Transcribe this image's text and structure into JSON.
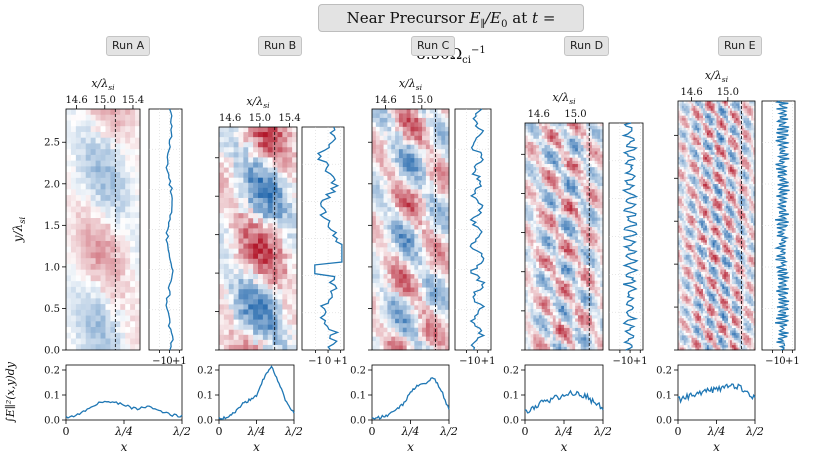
{
  "figure": {
    "title_text": "Near Precursor E∥/E0 at t = 8.50Ωci⁻¹",
    "title_parts": {
      "main": "Near Precursor ",
      "quantity": "E",
      "par": "∥",
      "slash": "/E",
      "zero": "0",
      "at": " at ",
      "t": "t",
      "eq": " = 8.50Ω",
      "ci": "ci",
      "exp": "−1"
    },
    "colors": {
      "line": "#1f77b4",
      "positive": "#b2182b",
      "negative": "#2166ac",
      "frame": "#000000",
      "dashed": "#000000"
    }
  },
  "chart_data": [
    {
      "type": "heatmap",
      "panel": "Run A",
      "label": "Run A",
      "top_xlabel": "x/λsi",
      "top_ticks": [
        "14.6",
        "15.0",
        "15.4"
      ],
      "top_tick_values": [
        14.6,
        15.0,
        15.4
      ],
      "top_xlim": [
        14.45,
        15.5
      ],
      "ylabel": "y/λsi",
      "yticks": [
        "0.0",
        "0.5",
        "1.0",
        "1.5",
        "2.0",
        "2.5"
      ],
      "ylim": [
        0,
        2.9
      ],
      "dashed_x": 15.15,
      "wave_density": 1,
      "amplitude": 0.45,
      "profile_ticks": [
        "−1",
        "0",
        "+1"
      ],
      "bottom": {
        "type": "line",
        "x_ticks": [
          "0",
          "λ/4",
          "λ/2"
        ],
        "xlabel": "x",
        "ylabel": "∫E∥²(x,y)dy",
        "yticks": [
          "0.0",
          "0.1",
          "0.2"
        ],
        "ylim": [
          0,
          0.22
        ],
        "x": [
          0,
          0.1,
          0.2,
          0.3,
          0.4,
          0.5,
          0.6,
          0.7,
          0.8,
          0.9,
          1.0
        ],
        "values": [
          0.01,
          0.02,
          0.045,
          0.07,
          0.075,
          0.06,
          0.045,
          0.055,
          0.04,
          0.02,
          0.015
        ]
      }
    },
    {
      "type": "heatmap",
      "panel": "Run B",
      "label": "Run B",
      "top_xlabel": "x/λsi",
      "top_ticks": [
        "14.6",
        "15.0",
        "15.4"
      ],
      "top_tick_values": [
        14.6,
        15.0,
        15.4
      ],
      "top_xlim": [
        14.45,
        15.5
      ],
      "yticks": [
        "0.0",
        "0.5",
        "1.0",
        "1.5",
        "2.0",
        "2.5"
      ],
      "ylim": [
        0,
        2.9
      ],
      "dashed_x": 15.2,
      "wave_density": 1.2,
      "amplitude": 1.0,
      "profile_ticks": [
        "−1",
        "0",
        "+1"
      ],
      "bottom": {
        "type": "line",
        "x_ticks": [
          "0",
          "λ/4",
          "λ/2"
        ],
        "xlabel": "x",
        "yticks": [
          "0.0",
          "0.1",
          "0.2"
        ],
        "ylim": [
          0,
          0.22
        ],
        "x": [
          0,
          0.1,
          0.2,
          0.3,
          0.4,
          0.5,
          0.6,
          0.7,
          0.8,
          0.9,
          1.0
        ],
        "values": [
          0.005,
          0.01,
          0.03,
          0.06,
          0.08,
          0.1,
          0.17,
          0.21,
          0.15,
          0.07,
          0.03
        ]
      }
    },
    {
      "type": "heatmap",
      "panel": "Run C",
      "label": "Run C",
      "top_xlabel": "x/λsi",
      "top_ticks": [
        "14.6",
        "15.0"
      ],
      "top_tick_values": [
        14.6,
        15.0
      ],
      "top_xlim": [
        14.45,
        15.3
      ],
      "yticks": [
        "0.0",
        "0.5",
        "1.0",
        "1.5",
        "2.0",
        "2.5"
      ],
      "ylim": [
        0,
        2.9
      ],
      "dashed_x": 15.15,
      "wave_density": 2,
      "amplitude": 0.85,
      "profile_ticks": [
        "−1",
        "0",
        "+1"
      ],
      "bottom": {
        "type": "line",
        "x_ticks": [
          "0",
          "λ/4",
          "λ/2"
        ],
        "xlabel": "x",
        "yticks": [
          "0.0",
          "0.1",
          "0.2"
        ],
        "ylim": [
          0,
          0.22
        ],
        "x": [
          0,
          0.1,
          0.2,
          0.3,
          0.4,
          0.5,
          0.6,
          0.7,
          0.8,
          0.9,
          1.0
        ],
        "values": [
          0.005,
          0.01,
          0.02,
          0.04,
          0.06,
          0.11,
          0.14,
          0.15,
          0.17,
          0.12,
          0.04
        ]
      }
    },
    {
      "type": "heatmap",
      "panel": "Run D",
      "label": "Run D",
      "top_xlabel": "x/λsi",
      "top_ticks": [
        "14.6",
        "15.0"
      ],
      "top_tick_values": [
        14.6,
        15.0
      ],
      "top_xlim": [
        14.45,
        15.3
      ],
      "yticks": [
        "0.0",
        "0.5",
        "1.0",
        "1.5",
        "2.0",
        "2.5"
      ],
      "ylim": [
        0,
        2.9
      ],
      "dashed_x": 15.15,
      "wave_density": 3.5,
      "amplitude": 0.85,
      "profile_ticks": [
        "−1",
        "0",
        "+1"
      ],
      "bottom": {
        "type": "line",
        "x_ticks": [
          "0",
          "λ/4",
          "λ/2"
        ],
        "xlabel": "x",
        "yticks": [
          "0.0",
          "0.1",
          "0.2"
        ],
        "ylim": [
          0,
          0.22
        ],
        "x": [
          0,
          0.1,
          0.2,
          0.3,
          0.4,
          0.5,
          0.6,
          0.7,
          0.8,
          0.9,
          1.0
        ],
        "values": [
          0.03,
          0.05,
          0.07,
          0.08,
          0.09,
          0.1,
          0.11,
          0.1,
          0.09,
          0.07,
          0.05
        ]
      }
    },
    {
      "type": "heatmap",
      "panel": "Run E",
      "label": "Run E",
      "top_xlabel": "x/λsi",
      "top_ticks": [
        "14.6",
        "15.0"
      ],
      "top_tick_values": [
        14.6,
        15.0
      ],
      "top_xlim": [
        14.45,
        15.3
      ],
      "yticks": [
        "0.0",
        "0.5",
        "1.0",
        "1.5",
        "2.0",
        "2.5"
      ],
      "ylim": [
        0,
        2.9
      ],
      "dashed_x": 15.15,
      "wave_density": 6,
      "amplitude": 0.9,
      "profile_ticks": [
        "−1",
        "0",
        "+1"
      ],
      "bottom": {
        "type": "line",
        "x_ticks": [
          "0",
          "λ/4",
          "λ/2"
        ],
        "xlabel": "x",
        "yticks": [
          "0.0",
          "0.1",
          "0.2"
        ],
        "ylim": [
          0,
          0.22
        ],
        "x": [
          0,
          0.1,
          0.2,
          0.3,
          0.4,
          0.5,
          0.6,
          0.7,
          0.8,
          0.9,
          1.0
        ],
        "values": [
          0.08,
          0.09,
          0.1,
          0.11,
          0.12,
          0.12,
          0.13,
          0.14,
          0.13,
          0.11,
          0.09
        ]
      }
    }
  ]
}
